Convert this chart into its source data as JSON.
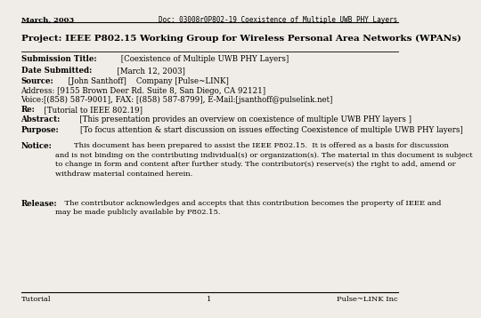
{
  "bg_color": "#f0ede8",
  "header_left": "March, 2003",
  "header_right": "Doc: 03008r0P802-19 Coexistence of Multiple UWB PHY Layers",
  "title": "Project: IEEE P802.15 Working Group for Wireless Personal Area Networks (WPANs)",
  "lines": [
    {
      "bold_part": "Submission Title:",
      "normal_part": " [Coexistence of Multiple UWB PHY Layers]"
    },
    {
      "bold_part": "Date Submitted:",
      "normal_part": "  [March 12, 2003]"
    },
    {
      "bold_part": "Source:",
      "normal_part": "  [John Santhoff]    Company [Pulse~LINK]"
    },
    {
      "bold_part": "",
      "normal_part": "Address: [9155 Brown Deer Rd. Suite 8, San Diego, CA 92121]"
    },
    {
      "bold_part": "",
      "normal_part": "Voice:[(858) 587-9001], FAX: [(858) 587-8799], E-Mail:[jsanthoff@pulselink.net]"
    },
    {
      "bold_part": "Re:",
      "normal_part": "  [Tutorial to IEEE 802.19]"
    },
    {
      "bold_part": "Abstract:",
      "normal_part": "   [This presentation provides an overview on coexistence of multiple UWB PHY layers ]"
    },
    {
      "bold_part": "Purpose:",
      "normal_part": "    [To focus attention & start discussion on issues effecting Coexistence of multiple UWB PHY layers]"
    }
  ],
  "notice_bold": "Notice:",
  "notice_text": "        This document has been prepared to assist the IEEE P802.15.  It is offered as a basis for discussion\nand is not binding on the contributing individual(s) or organization(s). The material in this document is subject\nto change in form and content after further study. The contributor(s) reserve(s) the right to add, amend or\nwithdraw material contained herein.",
  "release_bold": "Release:",
  "release_text": "    The contributor acknowledges and accepts that this contribution becomes the property of IEEE and\nmay be made publicly available by P802.15.",
  "footer_left": "Tutorial",
  "footer_center": "1",
  "footer_right": "Pulse~LINK Inc"
}
